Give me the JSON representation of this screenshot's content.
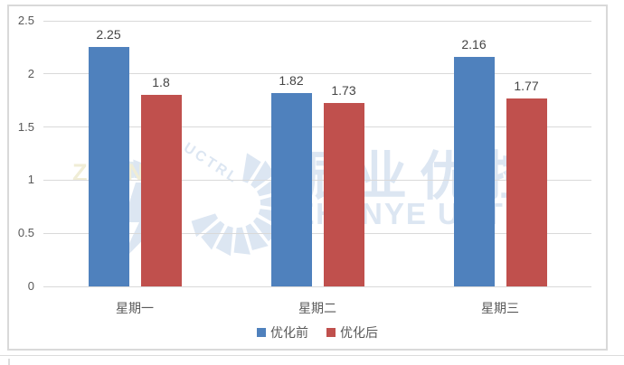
{
  "chart_data": {
    "type": "bar",
    "categories": [
      "星期一",
      "星期二",
      "星期三"
    ],
    "series": [
      {
        "name": "优化前",
        "color": "#4f81bd",
        "values": [
          2.25,
          1.82,
          2.16
        ]
      },
      {
        "name": "优化后",
        "color": "#c0504d",
        "values": [
          1.8,
          1.73,
          1.77
        ]
      }
    ],
    "data_labels": [
      "2.25",
      "1.8",
      "1.82",
      "1.73",
      "2.16",
      "1.77"
    ],
    "title": "",
    "xlabel": "",
    "ylabel": "",
    "ylim": [
      0,
      2.5
    ],
    "yticks": [
      "0",
      "0.5",
      "1",
      "1.5",
      "2",
      "2.5"
    ],
    "grid": "horizontal",
    "legend_position": "bottom"
  },
  "watermark": {
    "logo_text": "ZHENYE",
    "curved_text": "UCTRL",
    "cn_text": "振业优控",
    "en_text": "ZHENYE UCTRL",
    "pale_blue": "#dce6f2",
    "pale_green": "#eaf0da",
    "pale_yellow": "#f3eed6"
  },
  "colors": {
    "frame_border": "#d9d9d9",
    "gridline": "#d9d9d9",
    "axis_text": "#595959",
    "data_label_text": "#444444"
  }
}
